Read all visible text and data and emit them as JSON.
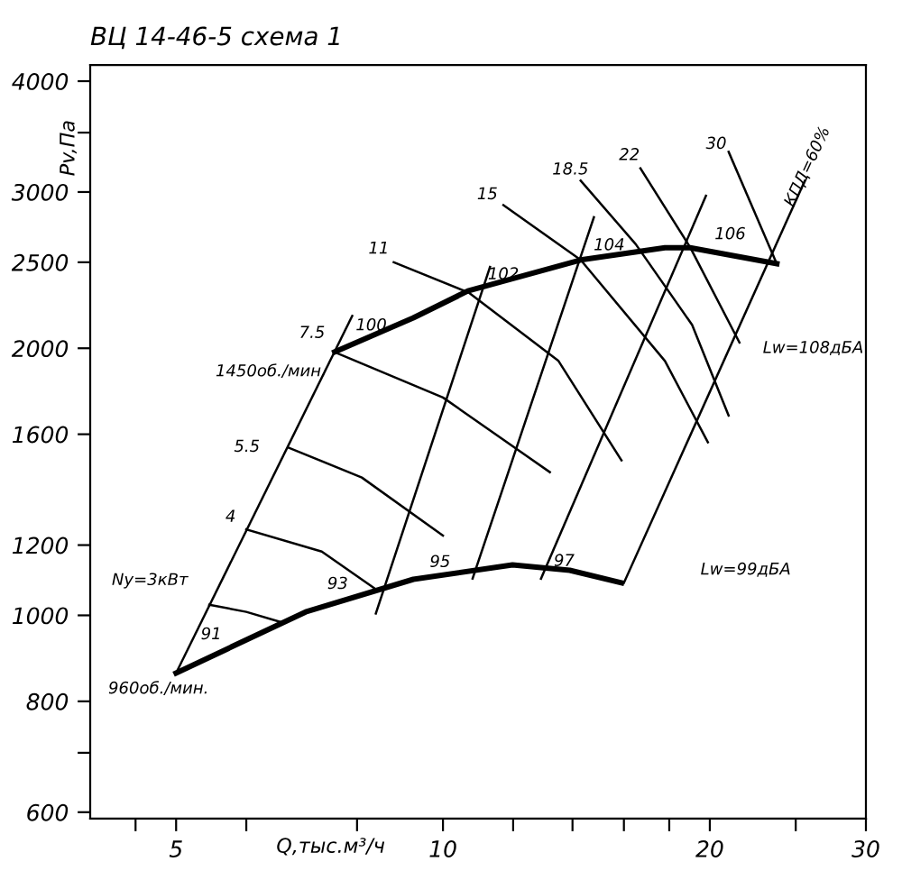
{
  "chart_data": {
    "type": "line",
    "title": "ВЦ 14-46-5 схема 1",
    "xlabel": "Q,тыс.м³/ч",
    "ylabel": "Pv,Па",
    "log": "xy",
    "grid": false,
    "marker": "none",
    "line_style": "solid",
    "xlim": [
      4,
      30
    ],
    "ylim": [
      590,
      4170
    ],
    "xticks": [
      {
        "value": 4.5,
        "label": null
      },
      5,
      {
        "value": 6,
        "label": null
      },
      {
        "value": 8,
        "label": null
      },
      10,
      {
        "value": 12,
        "label": null
      },
      {
        "value": 14,
        "label": null
      },
      {
        "value": 16,
        "label": null
      },
      {
        "value": 18,
        "label": null
      },
      20,
      {
        "value": 25,
        "label": null
      },
      30
    ],
    "yticks": [
      600,
      {
        "value": 700,
        "label": null
      },
      800,
      1000,
      1200,
      1600,
      2000,
      2500,
      3000,
      {
        "value": 3500,
        "label": null
      },
      4000
    ],
    "series": [
      {
        "color": "#000000",
        "x": [
          7.55,
          9.26,
          10.67,
          14.3,
          17.8,
          19.0,
          23.8
        ],
        "values": [
          1981,
          2164,
          2321,
          2515,
          2596,
          2596,
          2491
        ]
      },
      {
        "color": "#000000",
        "x": [
          5.0,
          7.0,
          9.26,
          11.98,
          13.9,
          15.9
        ],
        "values": [
          861,
          1009,
          1098,
          1140,
          1124,
          1088
        ]
      },
      {
        "color": "#000000",
        "x": [
          5.45,
          6.0,
          6.6
        ],
        "values": [
          1028,
          1009,
          981
        ]
      },
      {
        "color": "#000000",
        "x": [
          6.0,
          7.3,
          8.4
        ],
        "values": [
          1250,
          1180,
          1070
        ]
      },
      {
        "color": "#000000",
        "x": [
          6.7,
          8.1,
          10.0
        ],
        "values": [
          1545,
          1430,
          1230
        ]
      },
      {
        "color": "#000000",
        "x": [
          7.55,
          10.0,
          13.2
        ],
        "values": [
          1980,
          1760,
          1450
        ]
      },
      {
        "color": "#000000",
        "x": [
          8.8,
          10.7,
          13.5,
          15.9
        ],
        "values": [
          2500,
          2310,
          1935,
          1495
        ]
      },
      {
        "color": "#000000",
        "x": [
          11.7,
          14.3,
          17.8,
          19.9
        ],
        "values": [
          2900,
          2515,
          1935,
          1567
        ]
      },
      {
        "color": "#000000",
        "x": [
          14.3,
          16.5,
          19.1,
          21.0
        ],
        "values": [
          3090,
          2620,
          2125,
          1680
        ]
      },
      {
        "color": "#000000",
        "x": [
          16.7,
          19.0,
          21.6
        ],
        "values": [
          3190,
          2600,
          2030
        ]
      },
      {
        "color": "#000000",
        "x": [
          21.0,
          23.8
        ],
        "values": [
          3330,
          2490
        ]
      },
      {
        "color": "#000000",
        "x": [
          5.0,
          7.9
        ],
        "values": [
          861,
          2175
        ]
      },
      {
        "color": "#000000",
        "x": [
          8.4,
          11.3
        ],
        "values": [
          1005,
          2470
        ]
      },
      {
        "color": "#000000",
        "x": [
          10.8,
          14.8
        ],
        "values": [
          1100,
          2810
        ]
      },
      {
        "color": "#000000",
        "x": [
          12.9,
          19.8
        ],
        "values": [
          1100,
          2970
        ]
      },
      {
        "color": "#000000",
        "x": [
          16.0,
          25.6
        ],
        "values": [
          1088,
          3090
        ]
      }
    ],
    "annotations": [
      "1450об./мин.",
      "960об./мин.",
      "Ny=3кВт",
      "4",
      "5.5",
      "7.5",
      "11",
      "15",
      "18.5",
      "22",
      "30",
      {
        "text": "100",
        "x": 8.3,
        "y": 2120
      },
      {
        "text": "102",
        "x": 11.7,
        "y": 2420
      },
      {
        "text": "104",
        "x": 15.4,
        "y": 2610
      },
      "106",
      "91",
      "93",
      "95",
      {
        "text": "97",
        "x": 13.7,
        "y": 1150
      },
      "Lw=108дБА",
      "Lw=99дБА",
      "КПД=60%"
    ]
  }
}
